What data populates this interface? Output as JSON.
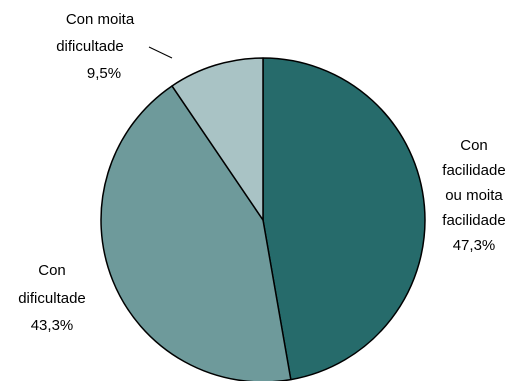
{
  "chart_data": {
    "type": "pie",
    "title": "",
    "slices": [
      {
        "lines": [
          "Con",
          "facilidade",
          "ou moita",
          "facilidade",
          "47,3%"
        ],
        "value": 47.3,
        "color": "#266b6b"
      },
      {
        "lines": [
          "Con",
          "dificultade",
          "43,3%"
        ],
        "value": 43.3,
        "color": "#6e9a9b"
      },
      {
        "lines": [
          "Con moita",
          "dificultade",
          "9,5%"
        ],
        "value": 9.5,
        "color": "#a9c3c5"
      }
    ]
  }
}
